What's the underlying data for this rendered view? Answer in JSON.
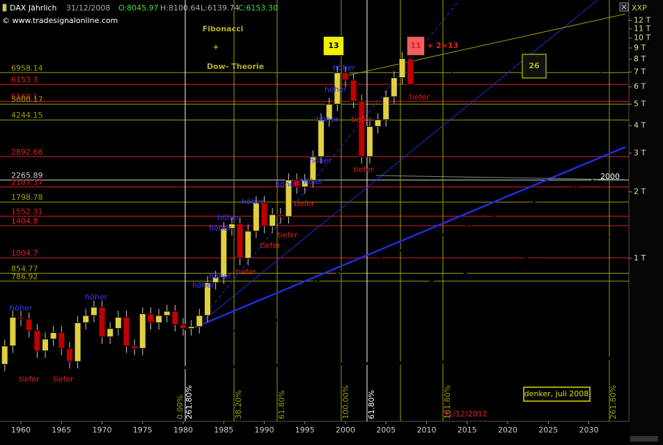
{
  "chart_data": {
    "type": "candlestick",
    "header": {
      "symbol": "DAX Jährlich",
      "date": "31/12/2008",
      "open": "O:8045.97",
      "high": "H:8100.64",
      "low": "L:6139.74",
      "close": "C:6153.30"
    },
    "copyright": "© www.tradesignalonline.com",
    "axis_label": "XXP",
    "log_scale": true,
    "up_color": "#e0d040",
    "down_color": "#c00000",
    "x": [
      1958,
      1959,
      1960,
      1961,
      1962,
      1963,
      1964,
      1965,
      1966,
      1967,
      1968,
      1969,
      1970,
      1971,
      1972,
      1973,
      1974,
      1975,
      1976,
      1977,
      1978,
      1979,
      1980,
      1981,
      1982,
      1983,
      1984,
      1985,
      1986,
      1987,
      1988,
      1989,
      1990,
      1991,
      1992,
      1993,
      1994,
      1995,
      1996,
      1997,
      1998,
      1999,
      2000,
      2001,
      2002,
      2003,
      2004,
      2005,
      2006,
      2007,
      2008
    ],
    "open": [
      330,
      400,
      540,
      530,
      470,
      380,
      430,
      460,
      390,
      340,
      510,
      550,
      600,
      440,
      480,
      540,
      400,
      390,
      560,
      510,
      550,
      575,
      500,
      480,
      490,
      550,
      775,
      820,
      1366,
      1432,
      1000,
      1328,
      1790,
      1398,
      1578,
      1545,
      2267,
      2107,
      2254,
      2889,
      4250,
      5002,
      6958,
      6434,
      5160,
      2893,
      3965,
      4256,
      5408,
      6597,
      8045.97
    ],
    "high": [
      428,
      578,
      578,
      567,
      503,
      460,
      492,
      492,
      417,
      546,
      589,
      642,
      642,
      514,
      578,
      578,
      428,
      599,
      599,
      589,
      615,
      615,
      535,
      524,
      589,
      829,
      877,
      1462,
      1532,
      1532,
      1421,
      1915,
      1915,
      1688,
      1688,
      2426,
      2426,
      2412,
      3091,
      4548,
      5352,
      7445,
      7445,
      6884,
      5521,
      4243,
      4554,
      5787,
      7059,
      8632,
      8100.64
    ],
    "low": [
      307,
      372,
      493,
      437,
      353,
      353,
      400,
      363,
      316,
      316,
      474,
      512,
      409,
      409,
      446,
      372,
      363,
      363,
      474,
      474,
      512,
      465,
      446,
      446,
      456,
      512,
      721,
      763,
      1270,
      930,
      930,
      1235,
      1300,
      1300,
      1437,
      1437,
      1960,
      1960,
      2096,
      2687,
      3953,
      4652,
      5984,
      4799,
      2690,
      2690,
      3687,
      3958,
      5029,
      6135,
      6139.74
    ],
    "close": [
      400,
      540,
      530,
      470,
      380,
      430,
      460,
      390,
      340,
      510,
      550,
      600,
      440,
      480,
      540,
      400,
      390,
      560,
      510,
      550,
      575,
      500,
      480,
      490,
      550,
      775,
      820,
      1366,
      1432,
      1000,
      1328,
      1790,
      1398,
      1578,
      1545,
      2267,
      2107,
      2254,
      2889,
      4250,
      5002,
      6958,
      6434,
      5160,
      2893,
      3965,
      4256,
      5408,
      6597,
      8067,
      6153.3
    ],
    "xlim": [
      1957.42,
      2034.94
    ],
    "xticks": [
      1960,
      1965,
      1970,
      1975,
      1980,
      1985,
      1990,
      1995,
      2000,
      2005,
      2010,
      2015,
      2020,
      2025,
      2030
    ],
    "ylim": [
      182,
      14860
    ],
    "yticks": [
      {
        "value": 12000,
        "label": "12 T"
      },
      {
        "value": 11000,
        "label": "11 T"
      },
      {
        "value": 10000,
        "label": "10 T"
      },
      {
        "value": 9000,
        "label": "9 T"
      },
      {
        "value": 8000,
        "label": "8 T"
      },
      {
        "value": 7000,
        "label": "7 T"
      },
      {
        "value": 6000,
        "label": "6 T"
      },
      {
        "value": 5000,
        "label": "5 T"
      },
      {
        "value": 4000,
        "label": "4 T"
      },
      {
        "value": 3000,
        "label": "3 T"
      },
      {
        "value": 2000,
        "label": "2 T"
      },
      {
        "value": 1000,
        "label": "1 T"
      }
    ],
    "levels": [
      {
        "value": 6958.14,
        "color": "#a0a000"
      },
      {
        "value": 6153.3,
        "color": "#e02020"
      },
      {
        "value": 5160.1,
        "color": "#e02020"
      },
      {
        "value": 5000.17,
        "color": "#a0a000"
      },
      {
        "value": 4244.15,
        "color": "#a0a000"
      },
      {
        "value": 2892.68,
        "color": "#e02020"
      },
      {
        "value": 2265.89,
        "color": "#d0d0d0"
      },
      {
        "value": 2107.37,
        "color": "#e02020"
      },
      {
        "value": 1798.78,
        "color": "#a0a000"
      },
      {
        "value": 1552.31,
        "color": "#e02020"
      },
      {
        "value": 1404.8,
        "color": "#e02020"
      },
      {
        "value": 1004.7,
        "color": "#e02020"
      },
      {
        "value": 854.77,
        "color": "#a0a000"
      },
      {
        "value": 786.92,
        "color": "#a0a000"
      }
    ],
    "annotations": [
      "Fibonacci",
      "+",
      "Dow- Theorie",
      "13",
      "11",
      "+ 2=13",
      "26",
      "denker, juli 2008",
      "2000",
      "31/12/2012"
    ],
    "wave_labels": [
      "höher",
      "höher",
      "höher",
      "höher",
      "höher",
      "höher",
      "höher",
      "höher",
      "höher",
      "höher",
      "höher",
      "höher",
      "höher",
      "tiefer",
      "tiefer",
      "tiefer",
      "tiefer",
      "tiefer",
      "tiefer",
      "tiefer",
      "tiefer",
      "tiefer"
    ],
    "fib_time_labels": [
      "0.00%",
      "261.80%",
      "38.20%",
      "61.80%",
      "100.00%",
      "61.80%",
      "161.80%",
      "261.80%"
    ]
  }
}
